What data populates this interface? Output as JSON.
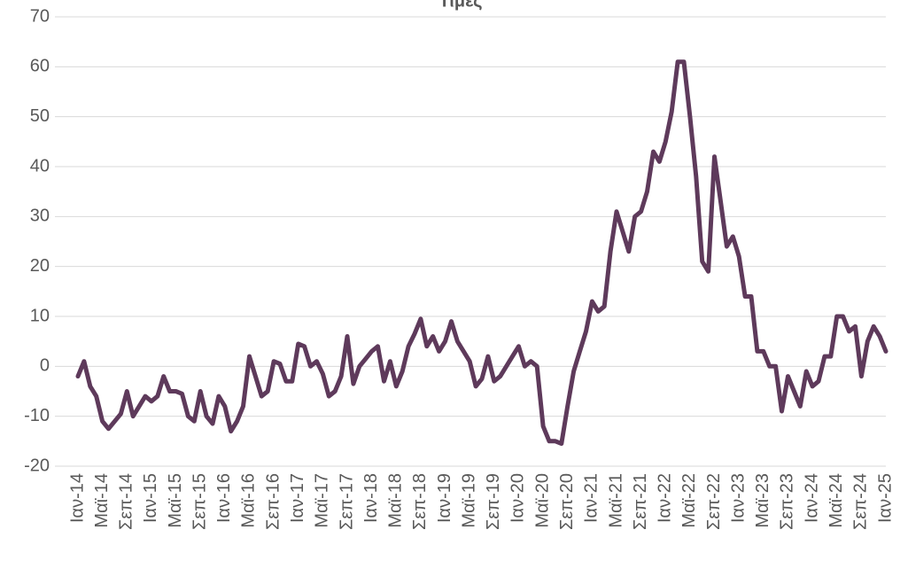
{
  "chart_data": {
    "type": "line",
    "title": "Τιμές",
    "categories": [
      "Ιαν-14",
      null,
      null,
      null,
      "Μαϊ-14",
      null,
      null,
      null,
      "Σεπ-14",
      null,
      null,
      null,
      "Ιαν-15",
      null,
      null,
      null,
      "Μαϊ-15",
      null,
      null,
      null,
      "Σεπ-15",
      null,
      null,
      null,
      "Ιαν-16",
      null,
      null,
      null,
      "Μαϊ-16",
      null,
      null,
      null,
      "Σεπ-16",
      null,
      null,
      null,
      "Ιαν-17",
      null,
      null,
      null,
      "Μαϊ-17",
      null,
      null,
      null,
      "Σεπ-17",
      null,
      null,
      null,
      "Ιαν-18",
      null,
      null,
      null,
      "Μαϊ-18",
      null,
      null,
      null,
      "Σεπ-18",
      null,
      null,
      null,
      "Ιαν-19",
      null,
      null,
      null,
      "Μαϊ-19",
      null,
      null,
      null,
      "Σεπ-19",
      null,
      null,
      null,
      "Ιαν-20",
      null,
      null,
      null,
      "Μαϊ-20",
      null,
      null,
      null,
      "Σεπ-20",
      null,
      null,
      null,
      "Ιαν-21",
      null,
      null,
      null,
      "Μαϊ-21",
      null,
      null,
      null,
      "Σεπ-21",
      null,
      null,
      null,
      "Ιαν-22",
      null,
      null,
      null,
      "Μαϊ-22",
      null,
      null,
      null,
      "Σεπ-22",
      null,
      null,
      null,
      "Ιαν-23",
      null,
      null,
      null,
      "Μαϊ-23",
      null,
      null,
      null,
      "Σεπ-23",
      null,
      null,
      null,
      "Ιαν-24",
      null,
      null,
      null,
      "Μαϊ-24",
      null,
      null,
      null,
      "Σεπ-24",
      null,
      null,
      null,
      "Ιαν-25"
    ],
    "values": [
      -2,
      1,
      -4,
      -6,
      -11,
      -12.5,
      -11,
      -9.5,
      -5,
      -10,
      -8,
      -6,
      -7,
      -6,
      -2,
      -5,
      -5,
      -5.5,
      -10,
      -11,
      -5,
      -10,
      -11.5,
      -6,
      -8,
      -13,
      -11,
      -8,
      2,
      -2,
      -6,
      -5,
      1,
      0.5,
      -3,
      -3,
      4.5,
      4,
      0,
      1,
      -1.5,
      -6,
      -5,
      -2,
      6,
      -3.5,
      0,
      1.5,
      3,
      4,
      -3,
      1,
      -4,
      -1,
      4,
      6.5,
      9.5,
      4,
      6,
      3,
      5,
      9,
      5,
      3,
      1,
      -4,
      -2.5,
      2,
      -3,
      -2,
      0,
      2,
      4,
      0,
      1,
      0,
      -12,
      -15,
      -15,
      -15.5,
      -8,
      -1,
      3,
      7,
      13,
      11,
      12,
      23,
      31,
      27,
      23,
      30,
      31,
      35,
      43,
      41,
      45,
      51,
      61,
      61,
      50,
      38,
      21,
      19,
      42,
      33,
      24,
      26,
      22,
      14,
      14,
      3,
      3,
      0,
      0,
      -9,
      -2,
      -5,
      -8,
      -1,
      -4,
      -3,
      2,
      2,
      10,
      10,
      7,
      8,
      -2,
      5,
      8,
      6,
      3
    ],
    "color": "#5e3a5b",
    "ylim": [
      -20,
      70
    ],
    "yticks": [
      -20,
      -10,
      0,
      10,
      20,
      30,
      40,
      50,
      60,
      70
    ],
    "grid": true
  }
}
